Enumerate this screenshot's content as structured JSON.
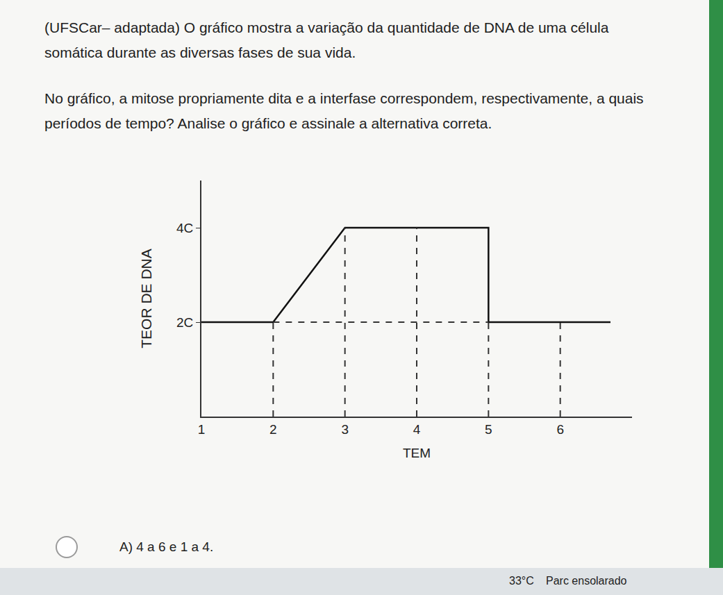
{
  "question": {
    "lines": [
      "(UFSCar– adaptada) O gráfico mostra a variação da quantidade de DNA de uma célula",
      "somática durante as diversas fases de sua vida.",
      "No gráfico, a mitose propriamente dita e a interfase correspondem, respectivamente, a quais",
      "períodos de tempo? Analise o gráfico e assinale a alternativa correta."
    ]
  },
  "chart_data": {
    "type": "line",
    "x": [
      1,
      2,
      3,
      5,
      5,
      6.7
    ],
    "values": [
      2,
      2,
      4,
      4,
      2,
      2
    ],
    "xlim": [
      1,
      7
    ],
    "xticks": [
      1,
      2,
      3,
      4,
      5,
      6
    ],
    "ylim": [
      0,
      5
    ],
    "yticks": [
      {
        "value": 2,
        "label": "2C"
      },
      {
        "value": 4,
        "label": "4C"
      }
    ],
    "x_label": "TEM",
    "y_label": "TEOR DE DNA",
    "color": "#111111",
    "line_style": "solid",
    "grid": false
  },
  "options": [
    "A) 4 a 6 e 1 a 4."
  ],
  "taskbar": {
    "temperature": "33°C",
    "weather": "Parc ensolarado"
  }
}
